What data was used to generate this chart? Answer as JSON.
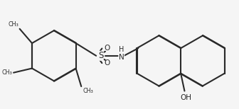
{
  "bg_color": "#f5f5f5",
  "line_color": "#2a2a2a",
  "line_width": 1.5,
  "fig_width": 3.36,
  "fig_height": 1.54,
  "dpi": 100,
  "methyl_labels": [
    "CH₃",
    "CH₃",
    "CH₃"
  ],
  "S_label": "S",
  "N_label": "H\nN",
  "O_label": "O",
  "OH_label": "OH"
}
